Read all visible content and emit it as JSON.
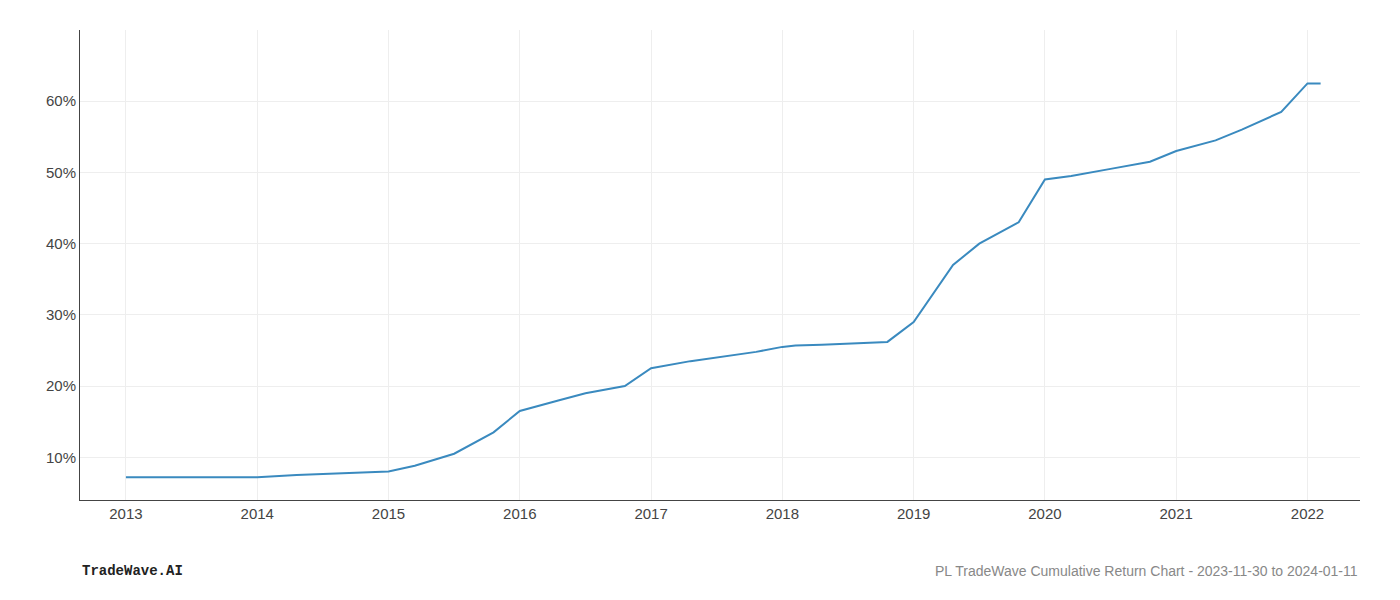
{
  "chart_data": {
    "type": "line",
    "x": [
      2013,
      2013.3,
      2013.7,
      2014,
      2014.3,
      2014.7,
      2015,
      2015.2,
      2015.5,
      2015.8,
      2016,
      2016.3,
      2016.5,
      2016.8,
      2017,
      2017.3,
      2017.5,
      2017.8,
      2018,
      2018.1,
      2018.3,
      2018.6,
      2018.8,
      2019,
      2019.3,
      2019.5,
      2019.8,
      2020,
      2020.2,
      2020.5,
      2020.8,
      2021,
      2021.3,
      2021.5,
      2021.8,
      2022,
      2022.1
    ],
    "values": [
      7.2,
      7.2,
      7.3,
      7.2,
      7.5,
      7.8,
      8.0,
      8.8,
      10.5,
      13.5,
      16.5,
      18.0,
      19.0,
      20.0,
      22.5,
      23.5,
      24.0,
      24.8,
      25.5,
      25.7,
      25.8,
      26.0,
      26.2,
      29.0,
      37.0,
      40.0,
      43.0,
      49.0,
      49.5,
      50.5,
      51.5,
      53.0,
      54.5,
      56.0,
      58.5,
      62.5,
      62.5
    ],
    "color": "#3a8abf",
    "xlim": [
      2012.65,
      2022.4
    ],
    "ylim": [
      4,
      70
    ],
    "xticks": [
      2013,
      2014,
      2015,
      2016,
      2017,
      2018,
      2019,
      2020,
      2021,
      2022
    ],
    "yticks": [
      {
        "value": 10,
        "label": "10%"
      },
      {
        "value": 20,
        "label": "20%"
      },
      {
        "value": 30,
        "label": "30%"
      },
      {
        "value": 40,
        "label": "40%"
      },
      {
        "value": 50,
        "label": "50%"
      },
      {
        "value": 60,
        "label": "60%"
      }
    ],
    "grid": true,
    "annotations": [
      "TradeWave.AI",
      "PL TradeWave Cumulative Return Chart - 2023-11-30 to 2024-01-11"
    ]
  }
}
